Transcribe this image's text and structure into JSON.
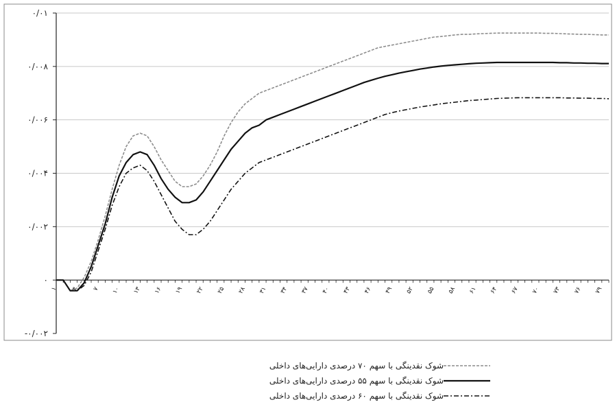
{
  "chart_data": {
    "type": "line",
    "title": "",
    "xlabel": "",
    "ylabel": "",
    "ylim": [
      -0.002,
      0.01
    ],
    "yticks": [
      {
        "value": 0.01,
        "label": "۰/۰۱"
      },
      {
        "value": 0.008,
        "label": "۰/۰۰۸"
      },
      {
        "value": 0.006,
        "label": "۰/۰۰۶"
      },
      {
        "value": 0.004,
        "label": "۰/۰۰۴"
      },
      {
        "value": 0.002,
        "label": "۰/۰۰۲"
      },
      {
        "value": 0,
        "label": "۰"
      },
      {
        "value": -0.002,
        "label": "-۰/۰۰۲"
      }
    ],
    "x": [
      1,
      2,
      3,
      4,
      5,
      6,
      7,
      8,
      9,
      10,
      11,
      12,
      13,
      14,
      15,
      16,
      17,
      18,
      19,
      20,
      21,
      22,
      23,
      24,
      25,
      26,
      27,
      28,
      29,
      30,
      31,
      32,
      33,
      34,
      35,
      36,
      37,
      38,
      39,
      40,
      41,
      42,
      43,
      44,
      45,
      46,
      47,
      48,
      49,
      50,
      51,
      52,
      53,
      54,
      55,
      56,
      57,
      58,
      59,
      60,
      61,
      62,
      63,
      64,
      65,
      66,
      67,
      68,
      69,
      70,
      71,
      72,
      73,
      74,
      75,
      76,
      77,
      78,
      79,
      80
    ],
    "xtick_labels": [
      "۱",
      "۴",
      "۷",
      "۱۰",
      "۱۳",
      "۱۶",
      "۱۹",
      "۲۲",
      "۲۵",
      "۲۸",
      "۳۱",
      "۳۴",
      "۳۷",
      "۴۰",
      "۴۳",
      "۴۶",
      "۴۹",
      "۵۲",
      "۵۵",
      "۵۸",
      "۶۱",
      "۶۴",
      "۶۷",
      "۷۰",
      "۷۳",
      "۷۶",
      "۷۹"
    ],
    "grid": "horizontal",
    "legend_position": "bottom",
    "series": [
      {
        "name": "شوک نقدینگی با سهم ۷۰ درصدی دارایی‌های داخلی",
        "color": "#8c8c8c",
        "style": "dashed",
        "values": [
          0,
          0,
          -0.0004,
          -0.0003,
          0.0001,
          0.0007,
          0.0015,
          0.0024,
          0.0034,
          0.0043,
          0.005,
          0.0054,
          0.0055,
          0.0054,
          0.005,
          0.0045,
          0.0041,
          0.0037,
          0.0035,
          0.0035,
          0.0036,
          0.0039,
          0.0043,
          0.0048,
          0.0054,
          0.0059,
          0.0063,
          0.0066,
          0.0068,
          0.007,
          0.0071,
          0.0072,
          0.0073,
          0.0074,
          0.0075,
          0.0076,
          0.0077,
          0.0078,
          0.0079,
          0.008,
          0.0081,
          0.0082,
          0.0083,
          0.0084,
          0.0085,
          0.0086,
          0.0087,
          0.00875,
          0.0088,
          0.00885,
          0.0089,
          0.00895,
          0.009,
          0.00905,
          0.0091,
          0.00912,
          0.00915,
          0.00918,
          0.0092,
          0.0092,
          0.00922,
          0.00923,
          0.00924,
          0.00925,
          0.00925,
          0.00925,
          0.00925,
          0.00925,
          0.00925,
          0.00925,
          0.00924,
          0.00924,
          0.00923,
          0.00922,
          0.00921,
          0.0092,
          0.0092,
          0.00919,
          0.00918,
          0.00918
        ]
      },
      {
        "name": "شوک نقدینگی با سهم ۵۵ درصدی دارایی‌های داخلی",
        "color": "#111111",
        "style": "solid",
        "values": [
          0,
          0,
          -0.0004,
          -0.0004,
          -0.0001,
          0.0005,
          0.0013,
          0.0021,
          0.0031,
          0.0039,
          0.0044,
          0.0047,
          0.0048,
          0.0047,
          0.0043,
          0.0038,
          0.0034,
          0.0031,
          0.0029,
          0.0029,
          0.003,
          0.0033,
          0.0037,
          0.0041,
          0.0045,
          0.0049,
          0.0052,
          0.0055,
          0.0057,
          0.0058,
          0.006,
          0.0061,
          0.0062,
          0.0063,
          0.0064,
          0.0065,
          0.0066,
          0.0067,
          0.0068,
          0.0069,
          0.007,
          0.0071,
          0.0072,
          0.0073,
          0.0074,
          0.00748,
          0.00756,
          0.00763,
          0.00769,
          0.00775,
          0.0078,
          0.00785,
          0.0079,
          0.00794,
          0.00798,
          0.00801,
          0.00804,
          0.00806,
          0.00808,
          0.0081,
          0.00812,
          0.00813,
          0.00814,
          0.00815,
          0.00815,
          0.00815,
          0.00815,
          0.00815,
          0.00815,
          0.00815,
          0.00815,
          0.00815,
          0.00814,
          0.00814,
          0.00813,
          0.00813,
          0.00812,
          0.00812,
          0.00811,
          0.00811
        ]
      },
      {
        "name": "شوک نقدینگی با سهم ۶۰ درصدی دارایی‌های داخلی",
        "color": "#111111",
        "style": "dashdot",
        "values": [
          0,
          0,
          -0.0004,
          -0.0004,
          -0.0002,
          0.0003,
          0.0011,
          0.0019,
          0.0028,
          0.0035,
          0.004,
          0.0042,
          0.0043,
          0.0041,
          0.0037,
          0.0032,
          0.0027,
          0.0022,
          0.0019,
          0.0017,
          0.0017,
          0.0019,
          0.0022,
          0.0026,
          0.003,
          0.0034,
          0.0037,
          0.004,
          0.0042,
          0.0044,
          0.0045,
          0.0046,
          0.0047,
          0.0048,
          0.0049,
          0.005,
          0.0051,
          0.0052,
          0.0053,
          0.0054,
          0.0055,
          0.0056,
          0.0057,
          0.0058,
          0.0059,
          0.006,
          0.0061,
          0.0062,
          0.00627,
          0.00633,
          0.00638,
          0.00643,
          0.00648,
          0.00652,
          0.00656,
          0.0066,
          0.00663,
          0.00666,
          0.00669,
          0.00672,
          0.00674,
          0.00676,
          0.00678,
          0.0068,
          0.00681,
          0.00682,
          0.00683,
          0.00683,
          0.00683,
          0.00683,
          0.00683,
          0.00683,
          0.00683,
          0.00682,
          0.00682,
          0.00681,
          0.00681,
          0.0068,
          0.0068,
          0.00679
        ]
      }
    ]
  }
}
